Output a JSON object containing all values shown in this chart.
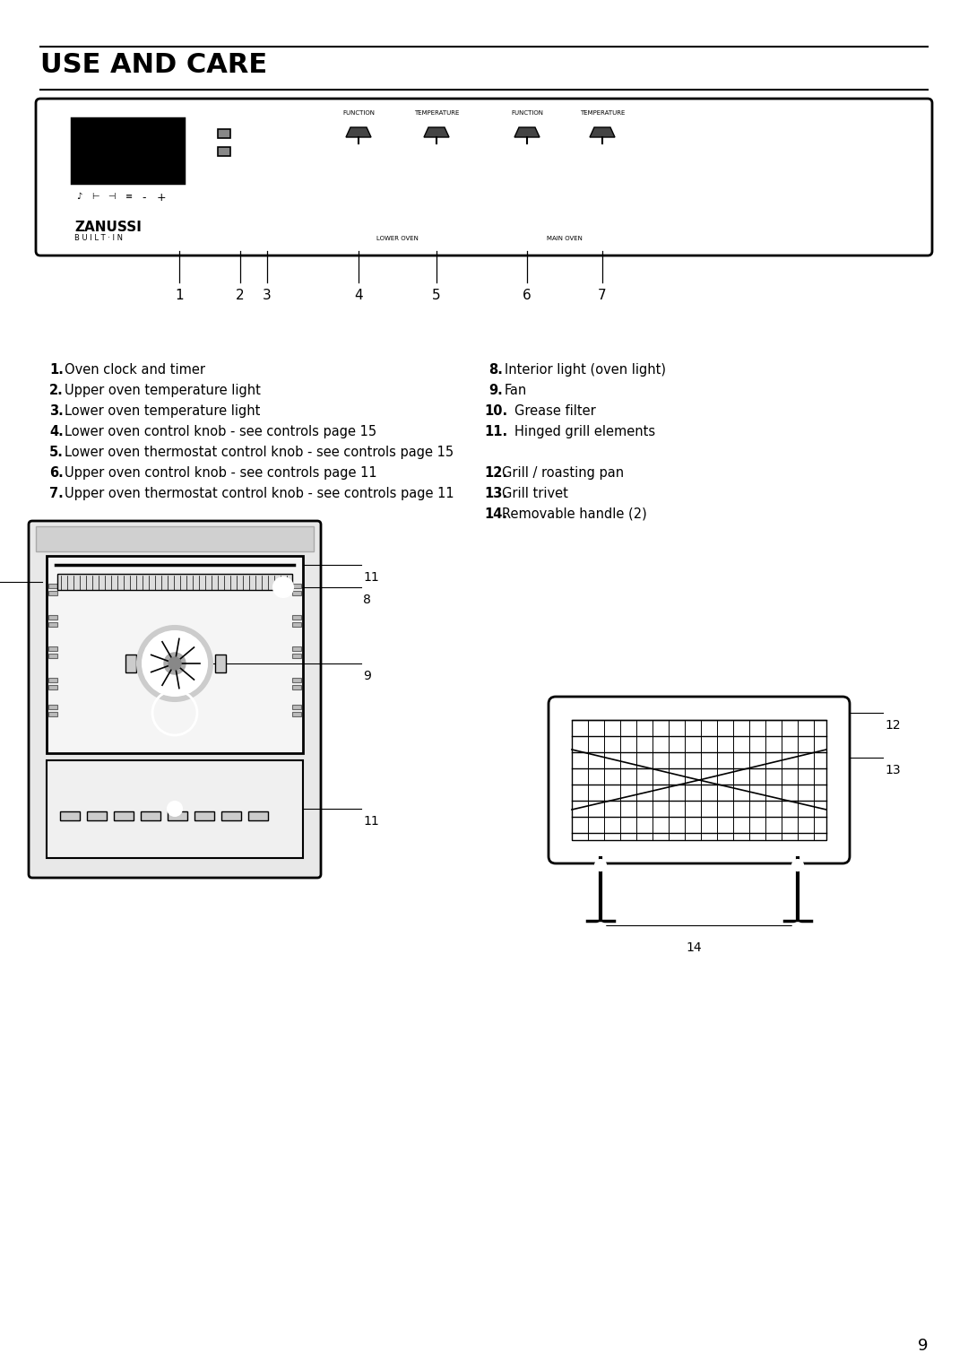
{
  "title": "USE AND CARE",
  "page_number": "9",
  "bg_color": "#ffffff",
  "text_color": "#000000",
  "items_left": [
    [
      "1.",
      "Oven clock and timer"
    ],
    [
      "2.",
      "Upper oven temperature light"
    ],
    [
      "3.",
      "Lower oven temperature light"
    ],
    [
      "4.",
      "Lower oven control knob - see controls page 15"
    ],
    [
      "5.",
      "Lower oven thermostat control knob - see controls page 15"
    ],
    [
      "6.",
      "Upper oven control knob - see controls page 11"
    ],
    [
      "7.",
      "Upper oven thermostat control knob - see controls page 11"
    ]
  ],
  "items_right": [
    [
      "8.",
      "Interior light (oven light)"
    ],
    [
      "9.",
      "Fan"
    ],
    [
      "10.",
      "Grease filter"
    ],
    [
      "11.",
      "Hinged grill elements"
    ],
    [
      "12.",
      "Grill / roasting pan"
    ],
    [
      "13.",
      "Grill trivet"
    ],
    [
      "14.",
      "Removable handle (2)"
    ]
  ],
  "knob_labels_top": [
    "FUNCTION",
    "TEMPERATURE",
    "FUNCTION",
    "TEMPERATURE"
  ],
  "lower_oven_label": "LOWER OVEN",
  "main_oven_label": "MAIN OVEN",
  "zanussi_text": "ZANUSSI",
  "builtin_text": "B U I L T · I N"
}
